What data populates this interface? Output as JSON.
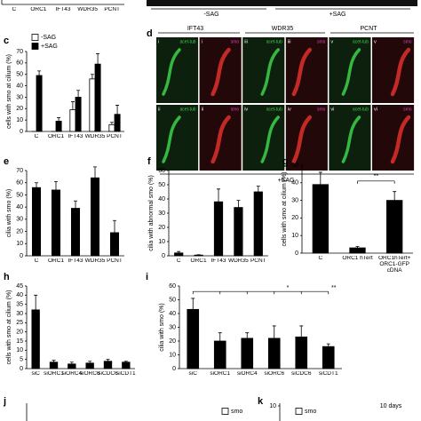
{
  "image_strip": {
    "labels": [
      "-SAG",
      "+SAG"
    ]
  },
  "image_grid": {
    "panel_label": "d",
    "columns": [
      "IFT43",
      "WDR35",
      "PCNT"
    ],
    "footer": "+SAG",
    "tiles": [
      [
        {
          "numeral": "i",
          "stain": "acet-tub"
        },
        {
          "numeral": "i",
          "stain": "smo"
        },
        {
          "numeral": "iii",
          "stain": "acet-tub"
        },
        {
          "numeral": "iii",
          "stain": "smo"
        },
        {
          "numeral": "v",
          "stain": "acet-tub"
        },
        {
          "numeral": "v",
          "stain": "smo"
        }
      ],
      [
        {
          "numeral": "ii",
          "stain": "acet-tub"
        },
        {
          "numeral": "ii",
          "stain": "smo"
        },
        {
          "numeral": "iv",
          "stain": "acet-tub"
        },
        {
          "numeral": "iv",
          "stain": "smo"
        },
        {
          "numeral": "vi",
          "stain": "acet-tub"
        },
        {
          "numeral": "vi",
          "stain": "smo"
        }
      ]
    ]
  },
  "chart_data": [
    {
      "type": "bar",
      "categories": [
        "C",
        "ORC1",
        "IFT43",
        "WDR35",
        "PCNT"
      ]
    },
    {
      "type": "bar",
      "panel_label": "c",
      "y_label": "cells with smo at cilium (%)",
      "categories": [
        "C",
        "ORC1",
        "IFT43",
        "WDR35",
        "PCNT"
      ],
      "series": [
        {
          "name": "-SAG",
          "color": "#ffffff",
          "values": [
            0,
            0,
            19,
            46,
            6
          ],
          "errors": [
            0,
            0,
            7,
            4,
            2
          ]
        },
        {
          "name": "+SAG",
          "color": "#000000",
          "values": [
            49,
            9,
            30,
            59,
            15
          ],
          "errors": [
            4,
            3,
            6,
            9,
            8
          ]
        }
      ],
      "ylim": [
        0,
        70
      ],
      "yticks": [
        0,
        10,
        20,
        30,
        40,
        50,
        60,
        70
      ]
    },
    {
      "type": "bar",
      "panel_label": "e",
      "y_label": "cilia with smo (%)",
      "categories": [
        "C",
        "ORC1",
        "IFT43",
        "WDR35",
        "PCNT"
      ],
      "color": "#000000",
      "values": [
        56,
        54,
        39,
        64,
        19
      ],
      "errors": [
        4,
        7,
        6,
        9,
        10
      ],
      "ylim": [
        0,
        70
      ],
      "yticks": [
        0,
        10,
        20,
        30,
        40,
        50,
        60,
        70
      ]
    },
    {
      "type": "bar",
      "panel_label": "f",
      "y_label": "cilia with abnormal smo (%)",
      "categories": [
        "C",
        "ORC1",
        "IFT43",
        "WDR35",
        "PCNT"
      ],
      "color": "#000000",
      "values": [
        2,
        0.5,
        38,
        34,
        45
      ],
      "errors": [
        1,
        0.3,
        9,
        5,
        4
      ],
      "ylim": [
        0,
        60
      ],
      "yticks": [
        0,
        10,
        20,
        30,
        40,
        50,
        60
      ]
    },
    {
      "type": "bar",
      "panel_label": "g",
      "y_label": "cells with smo at cilium (%)",
      "categories": [
        "C",
        "ORC1 hTert",
        "ORC1hTert+ ORC1-GFP cDNA"
      ],
      "color": "#000000",
      "values": [
        39,
        3,
        30
      ],
      "errors": [
        7,
        0.8,
        5
      ],
      "ylim": [
        0,
        50
      ],
      "yticks": [
        0,
        10,
        20,
        30,
        40,
        50
      ],
      "annotations": [
        {
          "text": "**"
        }
      ]
    },
    {
      "type": "bar",
      "panel_label": "h",
      "y_label": "cells with smo at cilium (%)",
      "categories": [
        "siC",
        "siORC1",
        "siORC4",
        "siORC6",
        "siCDC6",
        "siCDT1"
      ],
      "color": "#000000",
      "values": [
        32,
        3.5,
        2.5,
        3,
        4,
        3.5
      ],
      "errors": [
        8,
        1,
        1,
        1,
        1,
        0.5
      ],
      "ylim": [
        0,
        45
      ],
      "yticks": [
        0,
        5,
        10,
        15,
        20,
        25,
        30,
        35,
        40,
        45
      ]
    },
    {
      "type": "bar",
      "panel_label": "i",
      "y_label": "cilia with smo (%)",
      "categories": [
        "siC",
        "siORC1",
        "siORC4",
        "siORC6",
        "siCDC6",
        "siCDT1"
      ],
      "color": "#000000",
      "values": [
        43,
        20,
        22,
        22,
        23,
        16
      ],
      "errors": [
        8,
        6,
        4,
        9,
        8,
        2
      ],
      "ylim": [
        0,
        60
      ],
      "yticks": [
        0,
        10,
        20,
        30,
        40,
        50,
        60
      ],
      "annotations": [
        {
          "text": "*"
        },
        {
          "text": "**"
        }
      ]
    },
    {
      "type": "bar",
      "panel_label": "j",
      "series": [
        {
          "name": "smo",
          "color": "#ffffff"
        }
      ]
    },
    {
      "type": "bar",
      "panel_label": "k",
      "series": [
        {
          "name": "smo",
          "color": "#ffffff"
        }
      ],
      "yticks": [
        10
      ],
      "annotations": [
        {
          "text": "10 days"
        }
      ]
    }
  ]
}
